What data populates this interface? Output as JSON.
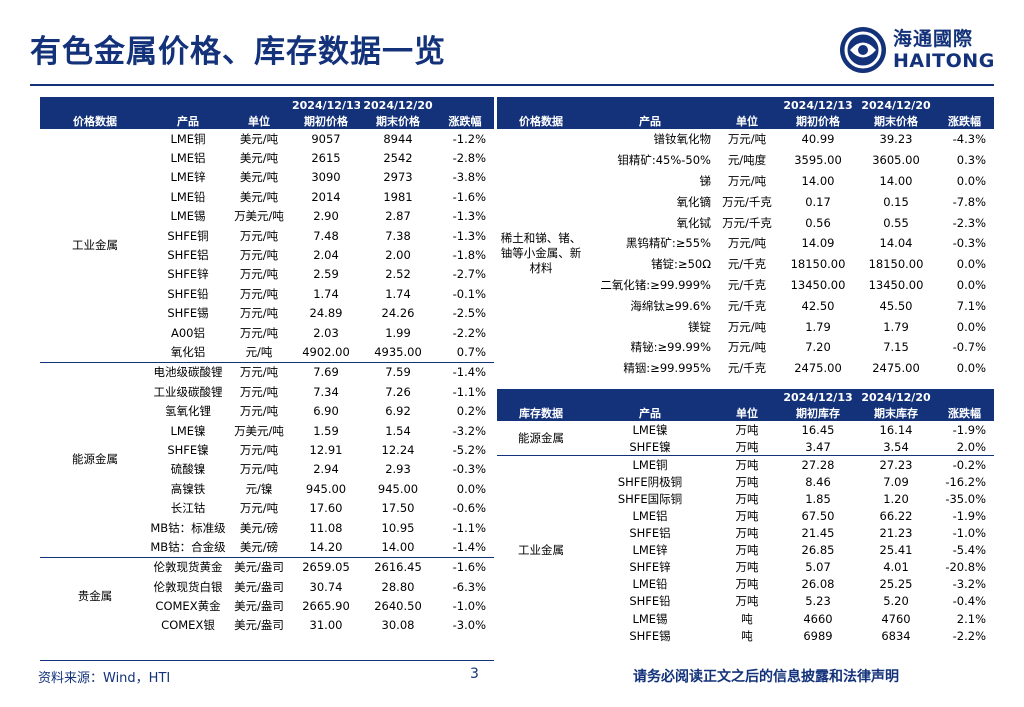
{
  "title": "有色金属价格、库存数据一览",
  "logo": {
    "cn": "海通國際",
    "en": "HAITONG"
  },
  "left_table": {
    "headers": {
      "date1": "2024/12/13",
      "date2": "2024/12/20",
      "c1": "价格数据",
      "c2": "产品",
      "c3": "单位",
      "c4": "期初价格",
      "c5": "期末价格",
      "c6": "涨跌幅"
    },
    "groups": [
      {
        "name": "工业金属",
        "rows": [
          [
            "LME铜",
            "美元/吨",
            "9057",
            "8944",
            "-1.2%"
          ],
          [
            "LME铝",
            "美元/吨",
            "2615",
            "2542",
            "-2.8%"
          ],
          [
            "LME锌",
            "美元/吨",
            "3090",
            "2973",
            "-3.8%"
          ],
          [
            "LME铅",
            "美元/吨",
            "2014",
            "1981",
            "-1.6%"
          ],
          [
            "LME锡",
            "万美元/吨",
            "2.90",
            "2.87",
            "-1.3%"
          ],
          [
            "SHFE铜",
            "万元/吨",
            "7.48",
            "7.38",
            "-1.3%"
          ],
          [
            "SHFE铝",
            "万元/吨",
            "2.04",
            "2.00",
            "-1.8%"
          ],
          [
            "SHFE锌",
            "万元/吨",
            "2.59",
            "2.52",
            "-2.7%"
          ],
          [
            "SHFE铅",
            "万元/吨",
            "1.74",
            "1.74",
            "-0.1%"
          ],
          [
            "SHFE锡",
            "万元/吨",
            "24.89",
            "24.26",
            "-2.5%"
          ],
          [
            "A00铝",
            "万元/吨",
            "2.03",
            "1.99",
            "-2.2%"
          ],
          [
            "氧化铝",
            "元/吨",
            "4902.00",
            "4935.00",
            "0.7%"
          ]
        ]
      },
      {
        "name": "能源金属",
        "rows": [
          [
            "电池级碳酸锂",
            "万元/吨",
            "7.69",
            "7.59",
            "-1.4%"
          ],
          [
            "工业级碳酸锂",
            "万元/吨",
            "7.34",
            "7.26",
            "-1.1%"
          ],
          [
            "氢氧化锂",
            "万元/吨",
            "6.90",
            "6.92",
            "0.2%"
          ],
          [
            "LME镍",
            "万美元/吨",
            "1.59",
            "1.54",
            "-3.2%"
          ],
          [
            "SHFE镍",
            "万元/吨",
            "12.91",
            "12.24",
            "-5.2%"
          ],
          [
            "硫酸镍",
            "万元/吨",
            "2.94",
            "2.93",
            "-0.3%"
          ],
          [
            "高镍铁",
            "元/镍",
            "945.00",
            "945.00",
            "0.0%"
          ],
          [
            "长江钴",
            "万元/吨",
            "17.60",
            "17.50",
            "-0.6%"
          ],
          [
            "MB钴：标准级",
            "美元/磅",
            "11.08",
            "10.95",
            "-1.1%"
          ],
          [
            "MB钴：合金级",
            "美元/磅",
            "14.20",
            "14.00",
            "-1.4%"
          ]
        ]
      },
      {
        "name": "贵金属",
        "rows": [
          [
            "伦敦现货黄金",
            "美元/盎司",
            "2659.05",
            "2616.45",
            "-1.6%"
          ],
          [
            "伦敦现货白银",
            "美元/盎司",
            "30.74",
            "28.80",
            "-6.3%"
          ],
          [
            "COMEX黄金",
            "美元/盎司",
            "2665.90",
            "2640.50",
            "-1.0%"
          ],
          [
            "COMEX银",
            "美元/盎司",
            "31.00",
            "30.08",
            "-3.0%"
          ]
        ]
      }
    ]
  },
  "right_price_table": {
    "headers": {
      "date1": "2024/12/13",
      "date2": "2024/12/20",
      "c1": "价格数据",
      "c2": "产品",
      "c3": "单位",
      "c4": "期初价格",
      "c5": "期末价格",
      "c6": "涨跌幅"
    },
    "group": "稀土和锑、锗、铀等小金属、新材料",
    "rows": [
      [
        "镨钕氧化物",
        "万元/吨",
        "40.99",
        "39.23",
        "-4.3%"
      ],
      [
        "钼精矿:45%-50%",
        "元/吨度",
        "3595.00",
        "3605.00",
        "0.3%"
      ],
      [
        "锑",
        "万元/吨",
        "14.00",
        "14.00",
        "0.0%"
      ],
      [
        "氧化镝",
        "万元/千克",
        "0.17",
        "0.15",
        "-7.8%"
      ],
      [
        "氧化铽",
        "万元/千克",
        "0.56",
        "0.55",
        "-2.3%"
      ],
      [
        "黑钨精矿:≥55%",
        "万元/吨",
        "14.09",
        "14.04",
        "-0.3%"
      ],
      [
        "锗锭:≥50Ω",
        "元/千克",
        "18150.00",
        "18150.00",
        "0.0%"
      ],
      [
        "二氧化锗:≥99.999%",
        "元/千克",
        "13450.00",
        "13450.00",
        "0.0%"
      ],
      [
        "海绵钛≥99.6%",
        "元/千克",
        "42.50",
        "45.50",
        "7.1%"
      ],
      [
        "镁锭",
        "万元/吨",
        "1.79",
        "1.79",
        "0.0%"
      ],
      [
        "精铋:≥99.99%",
        "万元/吨",
        "7.20",
        "7.15",
        "-0.7%"
      ],
      [
        "精铟:≥99.995%",
        "元/千克",
        "2475.00",
        "2475.00",
        "0.0%"
      ]
    ]
  },
  "right_stock_table": {
    "headers": {
      "date1": "2024/12/13",
      "date2": "2024/12/20",
      "c1": "库存数据",
      "c2": "产品",
      "c3": "单位",
      "c4": "期初库存",
      "c5": "期末库存",
      "c6": "涨跌幅"
    },
    "groups": [
      {
        "name": "能源金属",
        "rows": [
          [
            "LME镍",
            "万吨",
            "16.45",
            "16.14",
            "-1.9%"
          ],
          [
            "SHFE镍",
            "万吨",
            "3.47",
            "3.54",
            "2.0%"
          ]
        ]
      },
      {
        "name": "工业金属",
        "rows": [
          [
            "LME铜",
            "万吨",
            "27.28",
            "27.23",
            "-0.2%"
          ],
          [
            "SHFE阴极铜",
            "万吨",
            "8.46",
            "7.09",
            "-16.2%"
          ],
          [
            "SHFE国际铜",
            "万吨",
            "1.85",
            "1.20",
            "-35.0%"
          ],
          [
            "LME铝",
            "万吨",
            "67.50",
            "66.22",
            "-1.9%"
          ],
          [
            "SHFE铝",
            "万吨",
            "21.45",
            "21.23",
            "-1.0%"
          ],
          [
            "LME锌",
            "万吨",
            "26.85",
            "25.41",
            "-5.4%"
          ],
          [
            "SHFE锌",
            "万吨",
            "5.07",
            "4.01",
            "-20.8%"
          ],
          [
            "LME铅",
            "万吨",
            "26.08",
            "25.25",
            "-3.2%"
          ],
          [
            "SHFE铅",
            "万吨",
            "5.23",
            "5.20",
            "-0.4%"
          ],
          [
            "LME锡",
            "吨",
            "4660",
            "4760",
            "2.1%"
          ],
          [
            "SHFE锡",
            "吨",
            "6989",
            "6834",
            "-2.2%"
          ]
        ]
      }
    ]
  },
  "footer": {
    "source": "资料来源：Wind，HTI",
    "page": "3",
    "note": "请务必阅读正文之后的信息披露和法律声明"
  }
}
